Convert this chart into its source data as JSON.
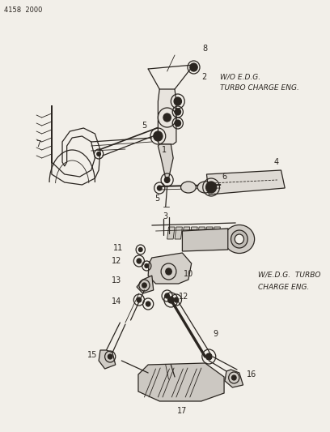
{
  "bg_color": "#f2efe9",
  "line_color": "#2a2520",
  "text_color": "#2a2520",
  "header_text": "4158  2000",
  "label1_line1": "W/O E.D.G.",
  "label1_line2": "TURBO CHARGE ENG.",
  "label2_line1": "W/E.D.G.  TURBO",
  "label2_line2": "CHARGE ENG.",
  "figsize": [
    4.08,
    5.33
  ],
  "dpi": 100
}
